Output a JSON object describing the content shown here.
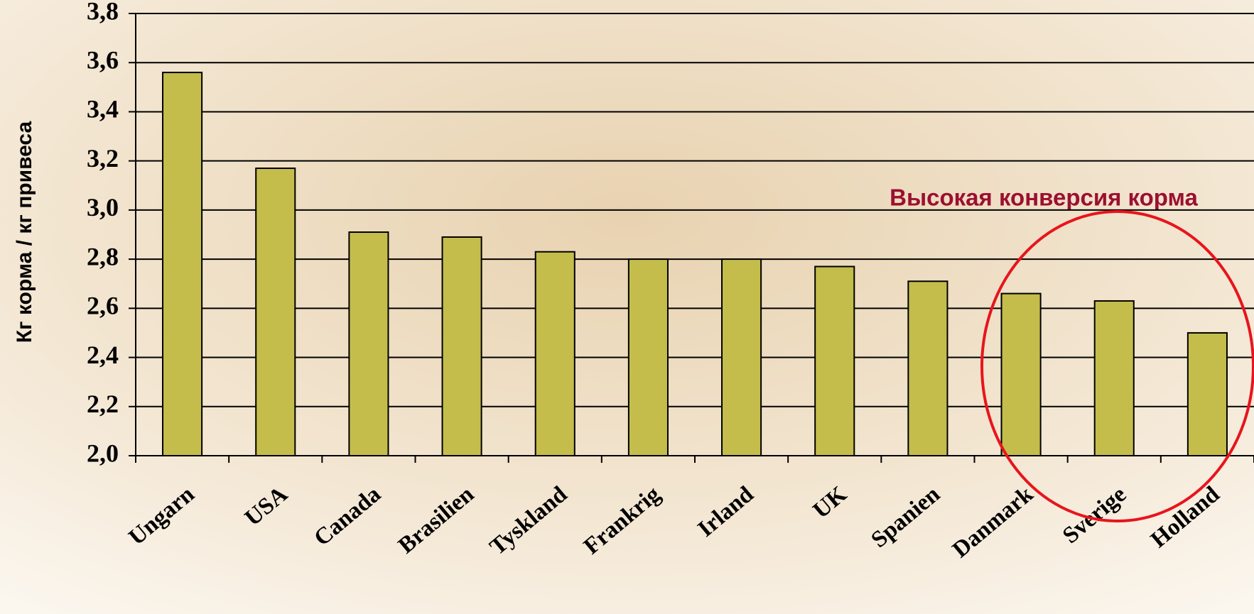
{
  "chart_data": {
    "type": "bar",
    "y_label": "Кг корма / кг привеса",
    "annotation": "Высокая конверсия корма",
    "categories": [
      "Ungarn",
      "USA",
      "Canada",
      "Brasilien",
      "Tyskland",
      "Frankrig",
      "Irland",
      "UK",
      "Spanien",
      "Danmark",
      "Sverige",
      "Holland"
    ],
    "values": [
      3.56,
      3.17,
      2.91,
      2.89,
      2.83,
      2.8,
      2.8,
      2.77,
      2.71,
      2.66,
      2.63,
      2.5
    ],
    "color": "#c4bd4c",
    "ylim": [
      2.0,
      3.8
    ],
    "yticks": [
      {
        "value": 2.0,
        "label": "2,0"
      },
      {
        "value": 2.2,
        "label": "2,2"
      },
      {
        "value": 2.4,
        "label": "2,4"
      },
      {
        "value": 2.6,
        "label": "2,6"
      },
      {
        "value": 2.8,
        "label": "2,8"
      },
      {
        "value": 3.0,
        "label": "3,0"
      },
      {
        "value": 3.2,
        "label": "3,2"
      },
      {
        "value": 3.4,
        "label": "3,4"
      },
      {
        "value": 3.6,
        "label": "3,6"
      },
      {
        "value": 3.8,
        "label": "3,8"
      }
    ],
    "grid": true
  }
}
